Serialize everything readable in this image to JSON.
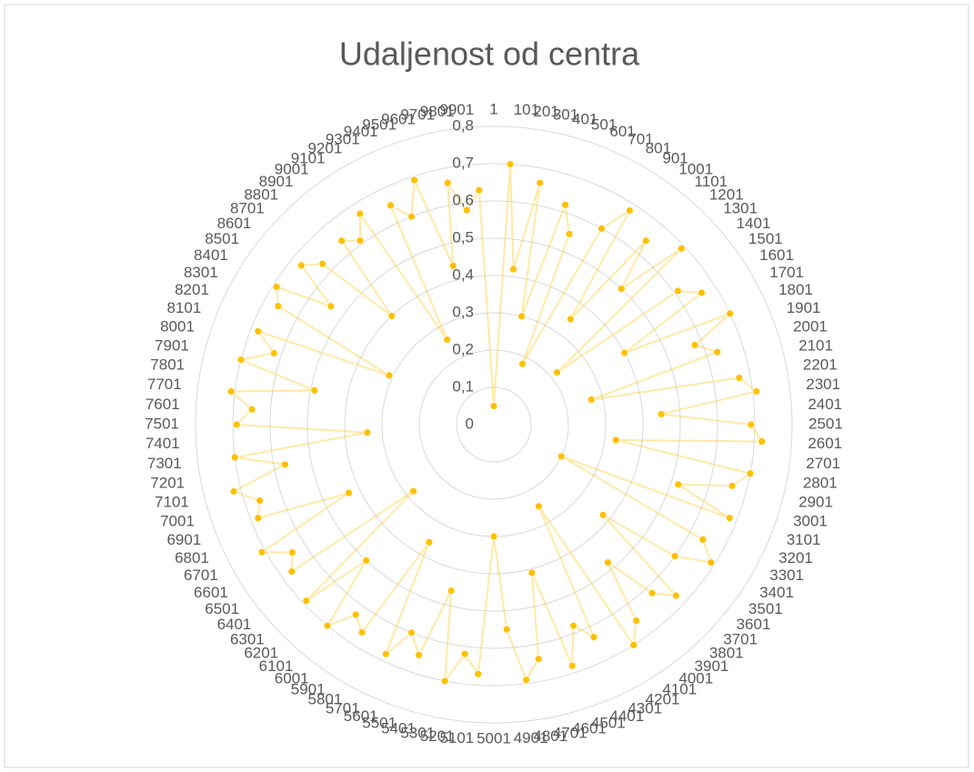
{
  "chart_data": {
    "type": "radar",
    "title": "Udaljenost od centra",
    "categories": [
      "1",
      "101",
      "201",
      "301",
      "401",
      "501",
      "601",
      "701",
      "801",
      "901",
      "1001",
      "1101",
      "1201",
      "1301",
      "1401",
      "1501",
      "1601",
      "1701",
      "1801",
      "1901",
      "2001",
      "2101",
      "2201",
      "2301",
      "2401",
      "2501",
      "2601",
      "2701",
      "2801",
      "2901",
      "3001",
      "3101",
      "3201",
      "3301",
      "3401",
      "3501",
      "3601",
      "3701",
      "3801",
      "3901",
      "4001",
      "4101",
      "4201",
      "4301",
      "4401",
      "4501",
      "4601",
      "4701",
      "4801",
      "4901",
      "5001",
      "5101",
      "5201",
      "5301",
      "5401",
      "5501",
      "5601",
      "5701",
      "5801",
      "5901",
      "6001",
      "6101",
      "6201",
      "6301",
      "6401",
      "6501",
      "6601",
      "6701",
      "6801",
      "6901",
      "7001",
      "7101",
      "7201",
      "7301",
      "7401",
      "7501",
      "7601",
      "7701",
      "7801",
      "7901",
      "8001",
      "8101",
      "8201",
      "8301",
      "8401",
      "8501",
      "8601",
      "8701",
      "8801",
      "8901",
      "9001",
      "9101",
      "9201",
      "9301",
      "9401",
      "9501",
      "9601",
      "9701",
      "9801",
      "9901"
    ],
    "values": [
      0.05,
      0.7,
      0.42,
      0.66,
      0.3,
      0.62,
      0.55,
      0.18,
      0.6,
      0.68,
      0.35,
      0.64,
      0.5,
      0.69,
      0.22,
      0.61,
      0.66,
      0.4,
      0.7,
      0.58,
      0.63,
      0.27,
      0.67,
      0.71,
      0.45,
      0.69,
      0.72,
      0.33,
      0.7,
      0.66,
      0.52,
      0.68,
      0.2,
      0.64,
      0.69,
      0.6,
      0.38,
      0.67,
      0.62,
      0.48,
      0.65,
      0.7,
      0.25,
      0.63,
      0.58,
      0.68,
      0.41,
      0.64,
      0.69,
      0.55,
      0.3,
      0.67,
      0.62,
      0.7,
      0.46,
      0.65,
      0.6,
      0.68,
      0.36,
      0.66,
      0.63,
      0.7,
      0.5,
      0.69,
      0.28,
      0.67,
      0.64,
      0.71,
      0.43,
      0.68,
      0.66,
      0.72,
      0.57,
      0.7,
      0.34,
      0.69,
      0.65,
      0.71,
      0.49,
      0.7,
      0.62,
      0.68,
      0.31,
      0.66,
      0.69,
      0.54,
      0.67,
      0.63,
      0.4,
      0.64,
      0.61,
      0.67,
      0.26,
      0.65,
      0.6,
      0.69,
      0.44,
      0.66,
      0.58,
      0.63
    ],
    "color": "#FFC000",
    "ylim": [
      0,
      0.8
    ],
    "yticks": [
      0,
      {
        "value": 0.1,
        "label": "0,1"
      },
      {
        "value": 0.2,
        "label": "0,2"
      },
      {
        "value": 0.3,
        "label": "0,3"
      },
      {
        "value": 0.4,
        "label": "0,4"
      },
      {
        "value": 0.5,
        "label": "0,5"
      },
      {
        "value": 0.6,
        "label": "0,6"
      },
      {
        "value": 0.7,
        "label": "0,7"
      },
      {
        "value": 0.8,
        "label": "0,8"
      }
    ],
    "grid": true
  }
}
